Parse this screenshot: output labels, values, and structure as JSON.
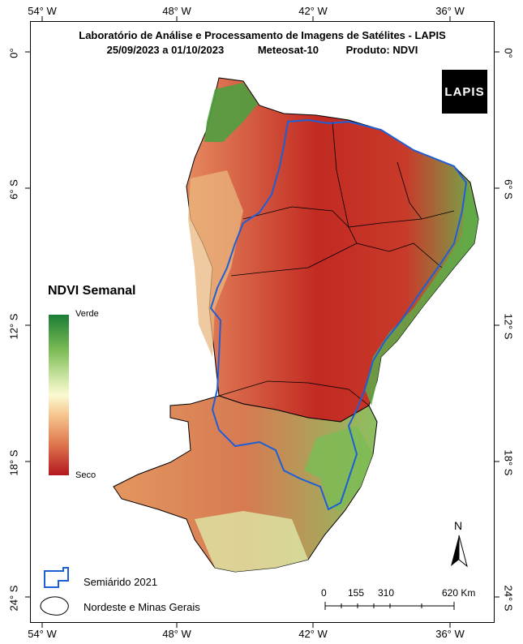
{
  "header": {
    "title": "Laboratório de Análise e Processamento de Imagens de Satélites - LAPIS",
    "date_range": "25/09/2023  a  01/10/2023",
    "satellite": "Meteosat-10",
    "product": "Produto: NDVI"
  },
  "logo": {
    "text": "LAPIS"
  },
  "axes": {
    "longitude_ticks": [
      "54° W",
      "48° W",
      "42° W",
      "36° W"
    ],
    "latitude_ticks": [
      "0°",
      "6° S",
      "12° S",
      "18° S",
      "24° S"
    ]
  },
  "legend": {
    "title": "NDVI Semanal",
    "top_label": "Verde",
    "bottom_label": "Seco",
    "items": [
      {
        "label": "Semiárido 2021",
        "color": "#1f5fd6"
      },
      {
        "label": "Nordeste e Minas Gerais",
        "color": "#000000"
      }
    ]
  },
  "scale_bar": {
    "labels": [
      "0",
      "155",
      "310",
      "620 Km"
    ]
  },
  "north_arrow": {
    "label": "N"
  },
  "colors": {
    "verde": "#1a7d35",
    "seco": "#b4171f",
    "semiarido_outline": "#1f5fd6"
  }
}
